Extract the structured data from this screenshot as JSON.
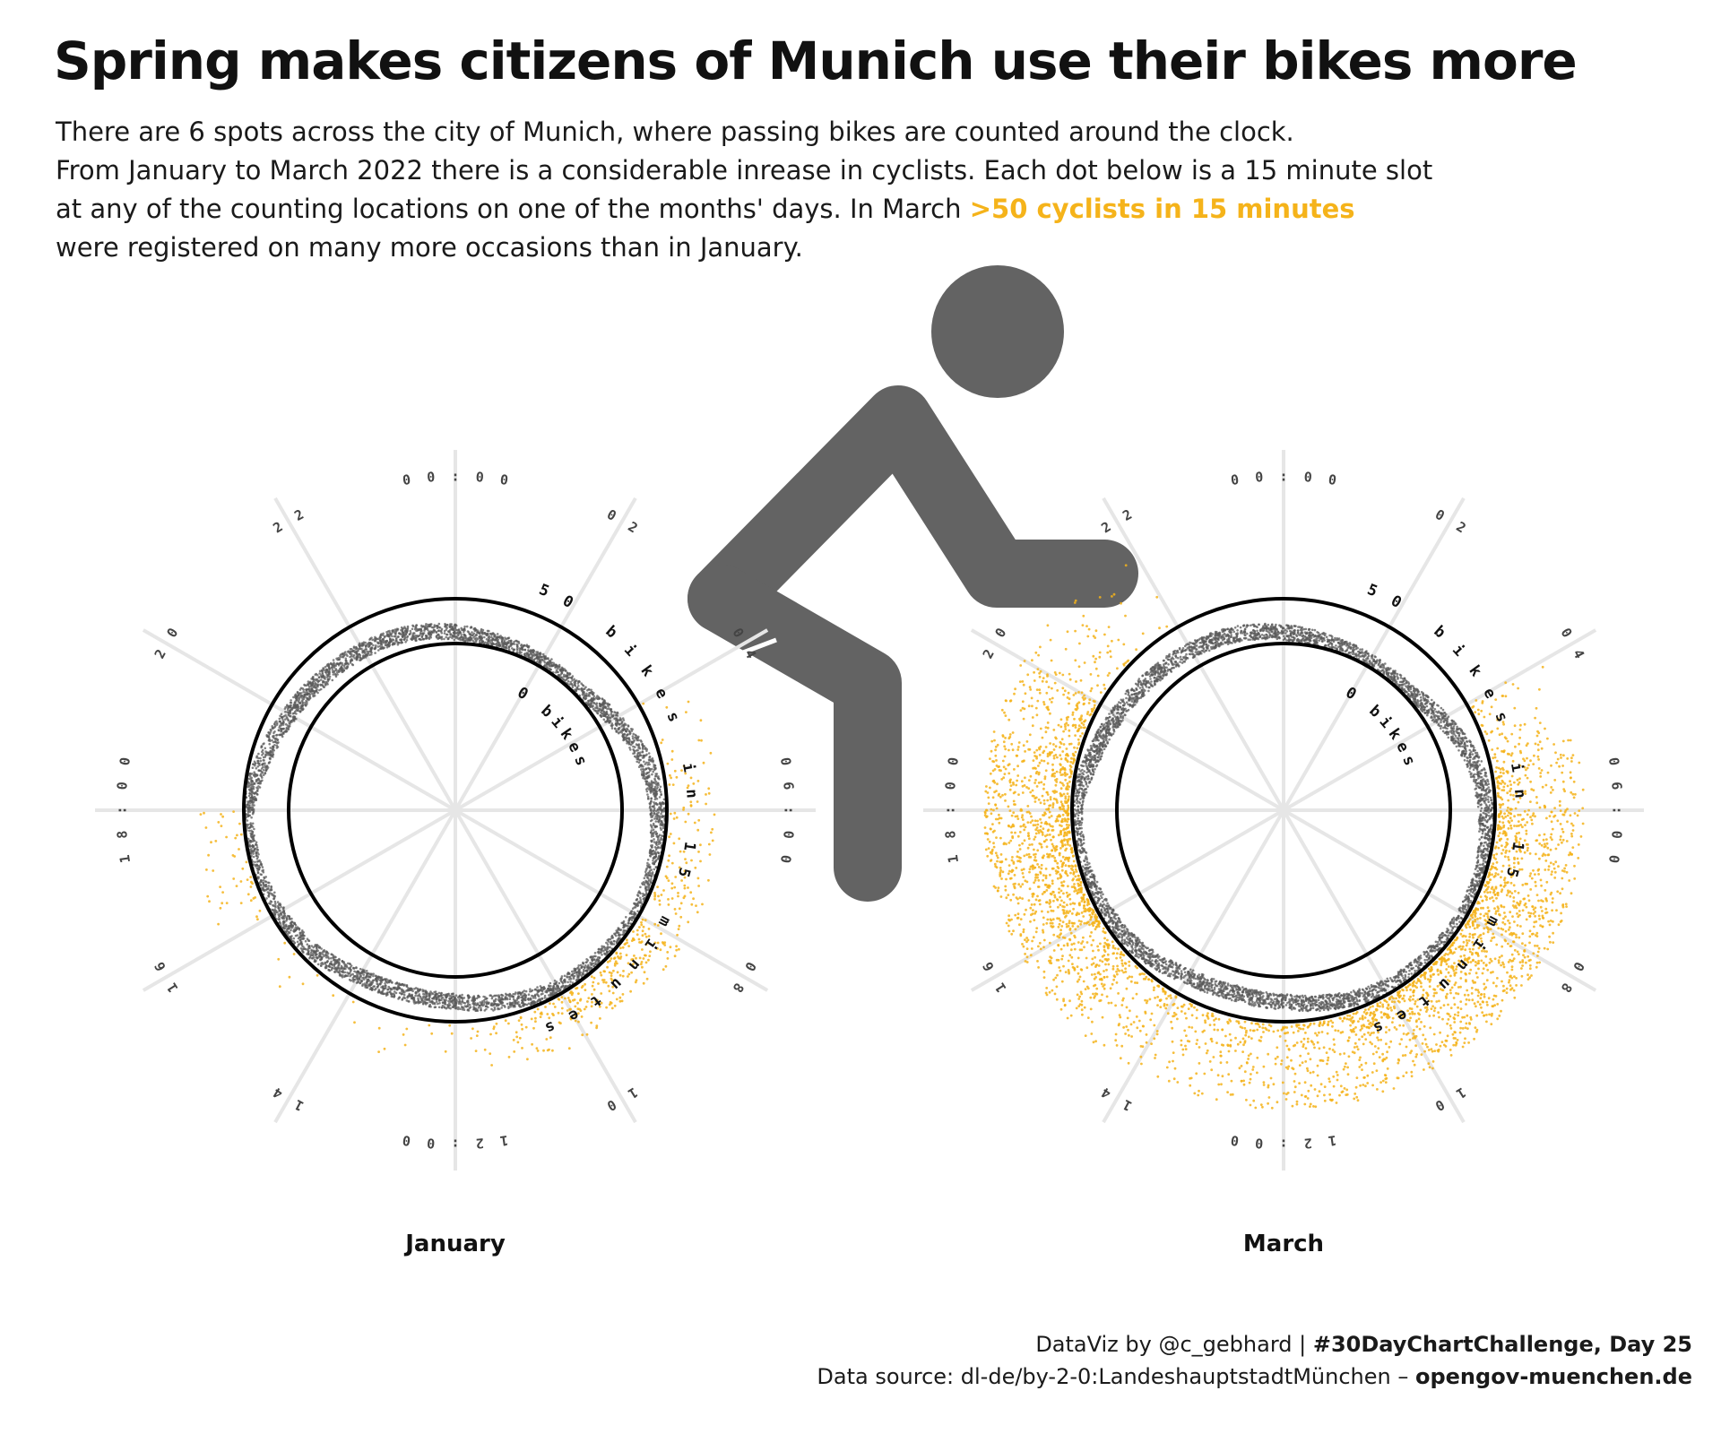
{
  "title": "Spring makes citizens of Munich use their bikes more",
  "subtitle": {
    "line1": "There are 6 spots across the city of Munich,  where passing bikes are counted around the clock.",
    "line2": "From January  to March 2022 there is a considerable inrease in cyclists. Each dot below is a 15 minute slot",
    "line3": "at any of the counting locations on one of the months' days. In March ",
    "highlight": ">50 cyclists in 15 minutes",
    "line4": "were registered on many more occasions than in January."
  },
  "colors": {
    "highlight": "#f5b31a",
    "dots_below": "#5a5a5a",
    "dots_above": "#f5b31a",
    "icon": "#636363",
    "gridline": "#e6e6e6",
    "ring": "#000000"
  },
  "icon": "bicycle-rider-icon",
  "chart_data": [
    {
      "type": "scatter",
      "coordinate_system": "polar",
      "title": "January",
      "theta": "time of day (15 minute slots)",
      "r": "cyclists per 15 minutes",
      "hour_ticks": [
        "00:00",
        "02",
        "04",
        "06:00",
        "08",
        "10",
        "12:00",
        "14",
        "16",
        "18:00",
        "20",
        "22"
      ],
      "ring_labels": [
        "0 bikes",
        "50 bikes in 15 minutes"
      ],
      "threshold": 50,
      "approx_dots_over_50_by_hour": [
        0,
        0,
        0,
        0,
        10,
        28,
        34,
        50,
        95,
        85,
        55,
        18,
        8,
        5,
        5,
        3,
        25,
        22,
        0,
        0,
        0,
        0,
        0,
        0
      ]
    },
    {
      "type": "scatter",
      "coordinate_system": "polar",
      "title": "March",
      "theta": "time of day (15 minute slots)",
      "r": "cyclists per 15 minutes",
      "hour_ticks": [
        "00:00",
        "02",
        "04",
        "06:00",
        "08",
        "10",
        "12:00",
        "14",
        "16",
        "18:00",
        "20",
        "22"
      ],
      "ring_labels": [
        "0 bikes",
        "50 bikes in 15 minutes"
      ],
      "threshold": 50,
      "approx_dots_over_50_by_hour": [
        0,
        0,
        0,
        0,
        60,
        160,
        230,
        280,
        300,
        270,
        220,
        165,
        120,
        100,
        120,
        230,
        330,
        360,
        290,
        170,
        60,
        15,
        0,
        0
      ]
    }
  ],
  "credits": {
    "line1_prefix": "DataViz by @c_gebhard |  ",
    "line1_bold": "#30DayChartChallenge, Day 25",
    "line2_prefix": "Data source: dl-de/by-2-0:LandeshauptstadtMünchen – ",
    "line2_bold": "opengov-muenchen.de"
  }
}
